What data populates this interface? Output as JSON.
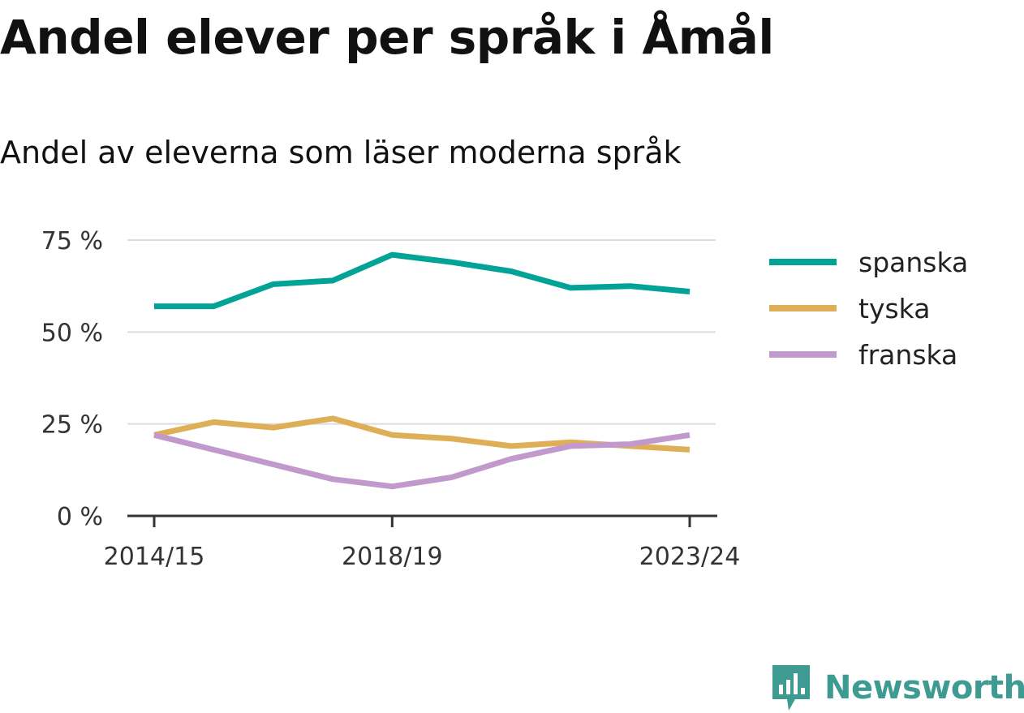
{
  "header": {
    "title": "Andel elever per språk i Åmål",
    "subtitle": "Andel av eleverna som läser moderna språk"
  },
  "brand": {
    "name": "Newsworthy",
    "icon": "newsworthy-logo-icon",
    "color": "#3d9b92"
  },
  "chart_data": {
    "type": "line",
    "x": [
      "2014/15",
      "2015/16",
      "2016/17",
      "2017/18",
      "2018/19",
      "2019/20",
      "2020/21",
      "2021/22",
      "2022/23",
      "2023/24"
    ],
    "x_tick_labels": [
      "2014/15",
      "2018/19",
      "2023/24"
    ],
    "y_ticks": [
      0,
      25,
      50,
      75
    ],
    "y_tick_labels": [
      "0 %",
      "25 %",
      "50 %",
      "75 %"
    ],
    "ylim": [
      0,
      75
    ],
    "grid": true,
    "legend": "right",
    "series": [
      {
        "name": "spanska",
        "color": "#00a396",
        "values": [
          57,
          57,
          63,
          64,
          71,
          69,
          66.5,
          62,
          62.5,
          61
        ]
      },
      {
        "name": "tyska",
        "color": "#deaf57",
        "values": [
          22,
          25.5,
          24,
          26.5,
          22,
          21,
          19,
          20,
          19,
          18
        ]
      },
      {
        "name": "franska",
        "color": "#c299cd",
        "values": [
          22,
          18,
          14,
          10,
          8,
          10.5,
          15.5,
          19,
          19.5,
          22
        ]
      }
    ]
  }
}
